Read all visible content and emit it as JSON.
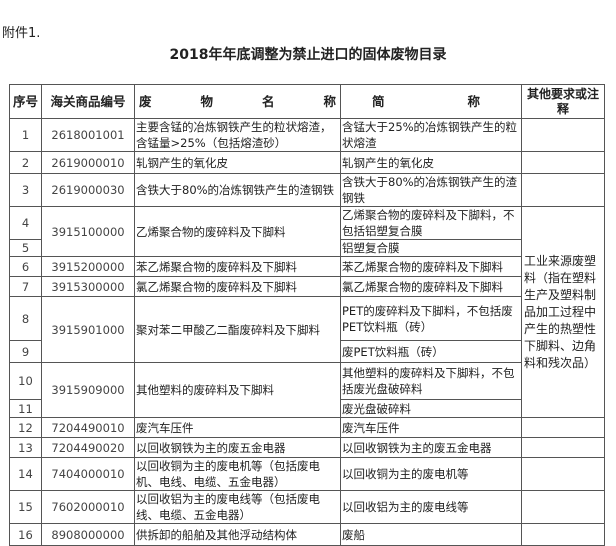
{
  "attachment": "附件1.",
  "title": "2018年年底调整为禁止进口的固体废物目录",
  "headers": {
    "no": "序号",
    "code": "海关商品编号",
    "name_chars": [
      "废",
      "物",
      "名",
      "称"
    ],
    "short_chars": [
      "简",
      "称"
    ],
    "remark": "其他要求或注释"
  },
  "rows": [
    {
      "no": "1",
      "code": "2618001001",
      "name": "主要含锰的冶炼钢铁产生的粒状熔渣，含锰量>25%（包括熔渣砂）",
      "short": "含锰大于25%的冶炼钢铁产生的粒状熔渣"
    },
    {
      "no": "2",
      "code": "2619000010",
      "name": "轧钢产生的氧化皮",
      "short": "轧钢产生的氧化皮"
    },
    {
      "no": "3",
      "code": "2619000030",
      "name": "含铁大于80%的冶炼钢铁产生的渣钢铁",
      "short": "含铁大于80%的冶炼钢铁产生的渣钢铁"
    },
    {
      "no": "4",
      "code": "3915100000",
      "name": "乙烯聚合物的废碎料及下脚料",
      "short": "乙烯聚合物的废碎料及下脚料，不包括铝塑复合膜"
    },
    {
      "no": "5",
      "short": "铝塑复合膜"
    },
    {
      "no": "6",
      "code": "3915200000",
      "name": "苯乙烯聚合物的废碎料及下脚料",
      "short": "苯乙烯聚合物的废碎料及下脚料"
    },
    {
      "no": "7",
      "code": "3915300000",
      "name": "氯乙烯聚合物的废碎料及下脚料",
      "short": "氯乙烯聚合物的废碎料及下脚料"
    },
    {
      "no": "8",
      "code": "3915901000",
      "name": "聚对苯二甲酸乙二酯废碎料及下脚料",
      "short": "PET的废碎料及下脚料，不包括废PET饮料瓶（砖）"
    },
    {
      "no": "9",
      "short": "废PET饮料瓶（砖）"
    },
    {
      "no": "10",
      "code": "3915909000",
      "name": "其他塑料的废碎料及下脚料",
      "short": "其他塑料的废碎料及下脚料，不包括废光盘破碎料"
    },
    {
      "no": "11",
      "short": "废光盘破碎料"
    },
    {
      "no": "12",
      "code": "7204490010",
      "name": "废汽车压件",
      "short": "废汽车压件"
    },
    {
      "no": "13",
      "code": "7204490020",
      "name": "以回收钢铁为主的废五金电器",
      "short": "以回收钢铁为主的废五金电器"
    },
    {
      "no": "14",
      "code": "7404000010",
      "name": "以回收铜为主的废电机等（包括废电机、电线、电缆、五金电器）",
      "short": "以回收铜为主的废电机等"
    },
    {
      "no": "15",
      "code": "7602000010",
      "name": "以回收铝为主的废电线等（包括废电线、电缆、五金电器）",
      "short": "以回收铝为主的废电线等"
    },
    {
      "no": "16",
      "code": "8908000000",
      "name": "供拆卸的船舶及其他浮动结构体",
      "short": "废船"
    }
  ],
  "plastic_remark": "工业来源废塑料（指在塑料生产及塑料制品加工过程中产生的热塑性下脚料、边角料和残次品）"
}
